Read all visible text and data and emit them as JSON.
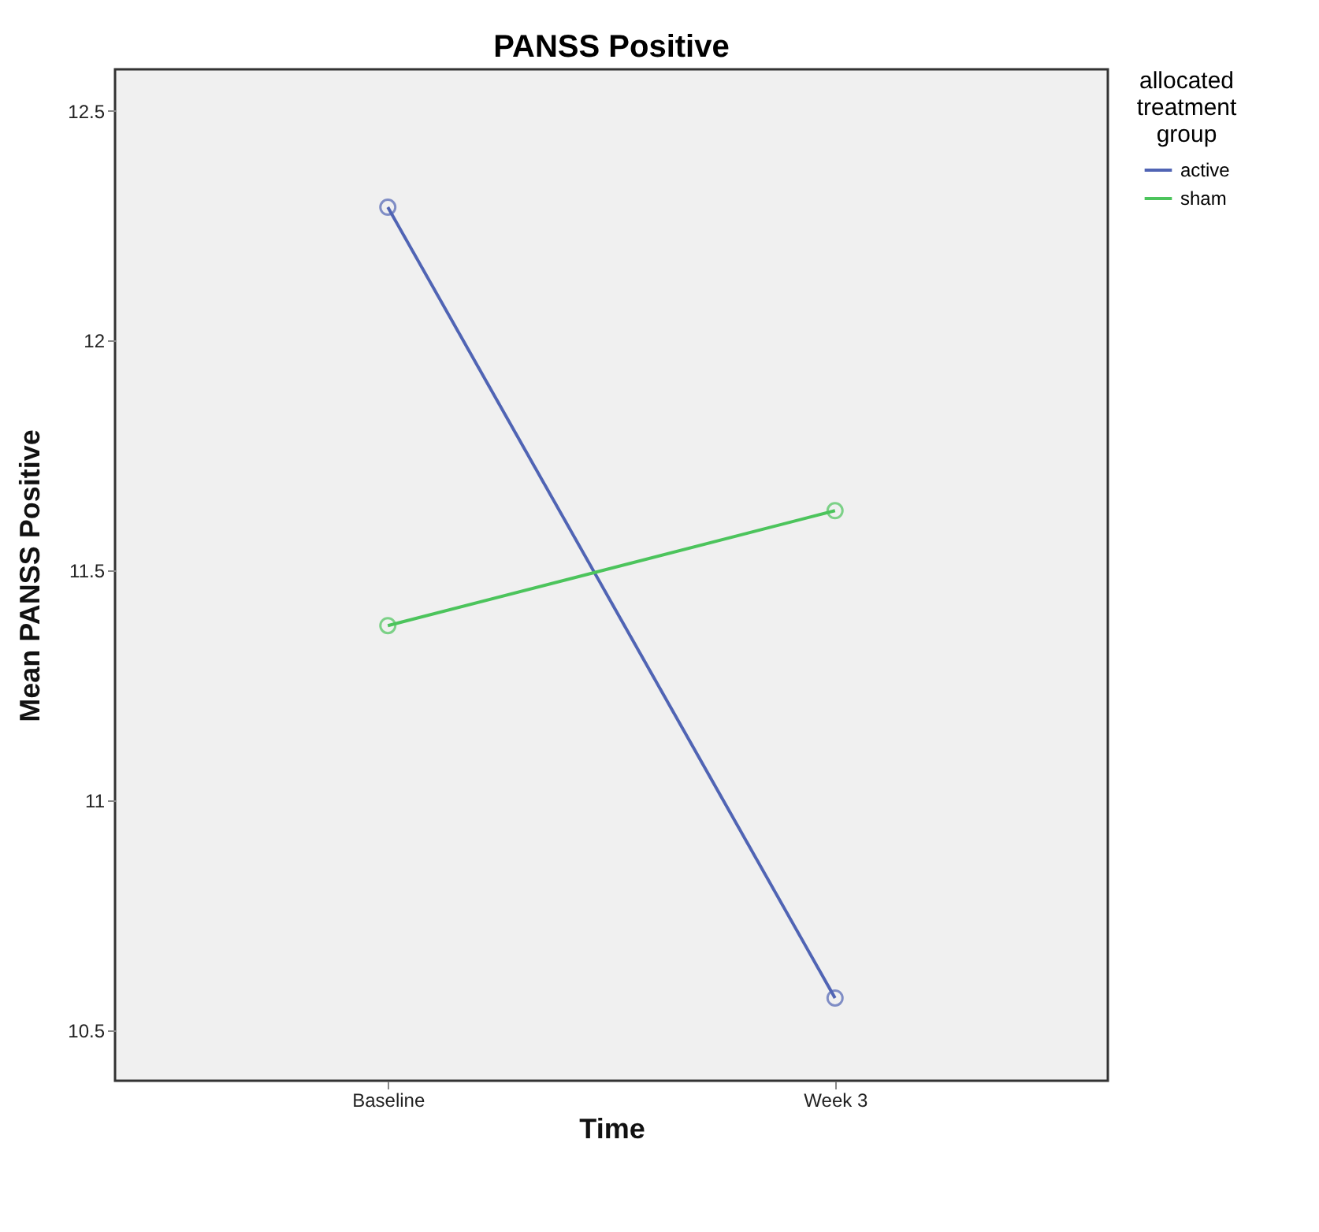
{
  "chart_data": {
    "type": "line",
    "title": "PANSS Positive",
    "xlabel": "Time",
    "ylabel": "Mean PANSS Positive",
    "legend_title": "allocated treatment group",
    "categories": [
      "Baseline",
      "Week 3"
    ],
    "series": [
      {
        "name": "active",
        "color": "#5064b4",
        "values": [
          12.29,
          10.57
        ]
      },
      {
        "name": "sham",
        "color": "#4cc45c",
        "values": [
          11.38,
          11.63
        ]
      }
    ],
    "ylim": [
      10.39,
      12.59
    ],
    "yticks": [
      10.5,
      11,
      11.5,
      12,
      12.5
    ],
    "grid": false,
    "legend": "right",
    "marker": "circle",
    "line_style": "solid"
  }
}
